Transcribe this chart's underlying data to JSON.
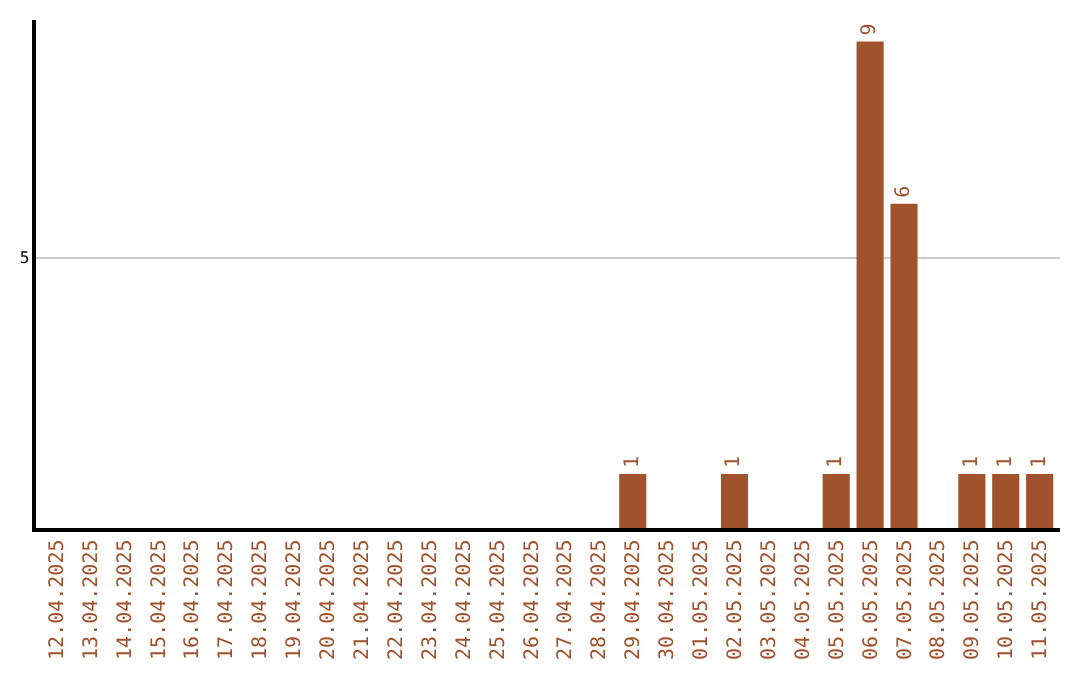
{
  "chart_data": {
    "type": "bar",
    "categories": [
      "12.04.2025",
      "13.04.2025",
      "14.04.2025",
      "15.04.2025",
      "16.04.2025",
      "17.04.2025",
      "18.04.2025",
      "19.04.2025",
      "20.04.2025",
      "21.04.2025",
      "22.04.2025",
      "23.04.2025",
      "24.04.2025",
      "25.04.2025",
      "26.04.2025",
      "27.04.2025",
      "28.04.2025",
      "29.04.2025",
      "30.04.2025",
      "01.05.2025",
      "02.05.2025",
      "03.05.2025",
      "04.05.2025",
      "05.05.2025",
      "06.05.2025",
      "07.05.2025",
      "08.05.2025",
      "09.05.2025",
      "10.05.2025",
      "11.05.2025"
    ],
    "values": [
      null,
      null,
      null,
      null,
      null,
      null,
      null,
      null,
      null,
      null,
      null,
      null,
      null,
      null,
      null,
      null,
      null,
      1,
      null,
      null,
      1,
      null,
      null,
      1,
      9,
      6,
      null,
      1,
      1,
      1
    ],
    "data_labels": true,
    "color": "#a0522d",
    "ylim": [
      0,
      9.4
    ],
    "yticks": [
      {
        "value": 0,
        "label": null
      },
      5
    ],
    "grid": "y",
    "legend": false
  }
}
